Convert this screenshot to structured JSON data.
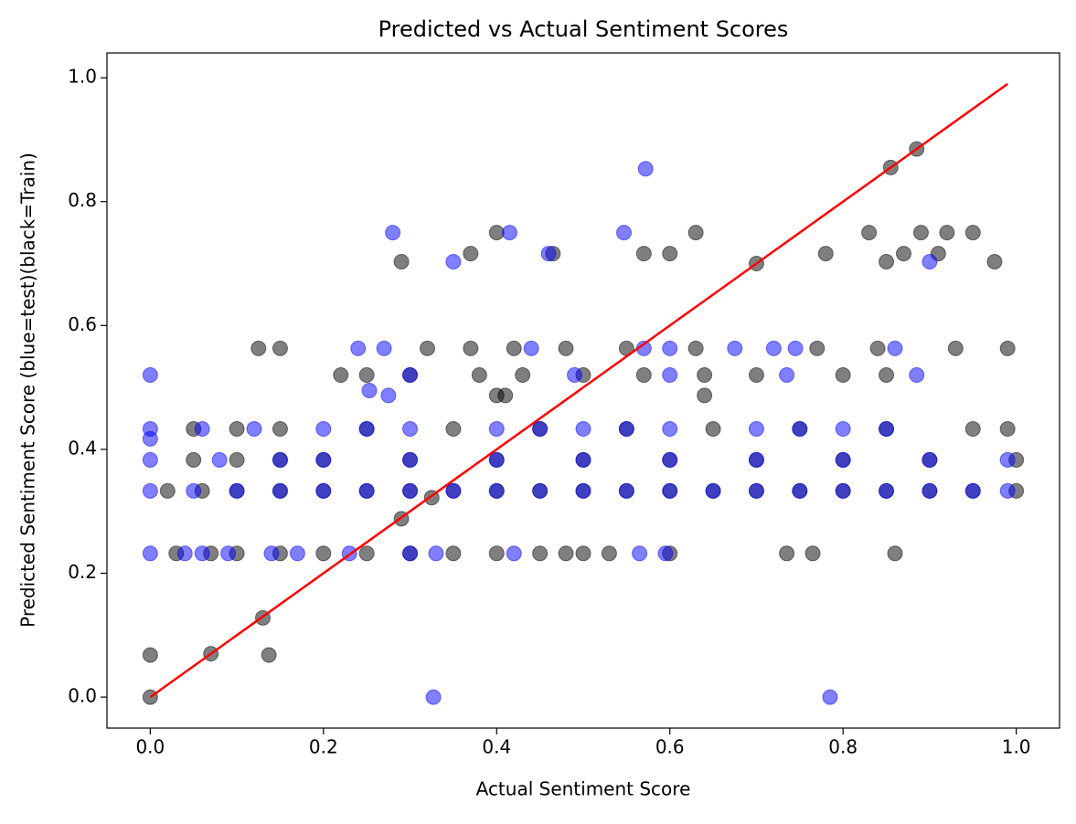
{
  "chart_data": {
    "type": "scatter",
    "title": "Predicted vs Actual Sentiment Scores",
    "x_label": "Actual Sentiment Score",
    "y_label": "Predicted Sentiment Score (blue=test)(black=Train)",
    "xlim": [
      -0.05,
      1.05
    ],
    "ylim": [
      -0.05,
      1.04
    ],
    "xticks": [
      {
        "value": 0,
        "label": "0.0"
      },
      {
        "value": 0.2,
        "label": "0.2"
      },
      {
        "value": 0.4,
        "label": "0.4"
      },
      {
        "value": 0.6,
        "label": "0.6"
      },
      {
        "value": 0.8,
        "label": "0.8"
      },
      {
        "value": 1,
        "label": "1.0"
      }
    ],
    "yticks": [
      {
        "value": 0,
        "label": "0.0"
      },
      {
        "value": 0.2,
        "label": "0.2"
      },
      {
        "value": 0.4,
        "label": "0.4"
      },
      {
        "value": 0.6,
        "label": "0.6"
      },
      {
        "value": 0.8,
        "label": "0.8"
      },
      {
        "value": 1,
        "label": "1.0"
      }
    ],
    "series": [
      {
        "color": "#000000",
        "opacity": 0.5,
        "mode": "markers",
        "x": [
          0,
          0,
          0.07,
          0.13,
          0.137,
          0.29,
          0.325,
          0.7,
          0.855,
          0.885,
          0.03,
          0.07,
          0.1,
          0.15,
          0.2,
          0.25,
          0.3,
          0.35,
          0.4,
          0.45,
          0.48,
          0.5,
          0.53,
          0.6,
          0.735,
          0.765,
          0.86,
          0.02,
          0.06,
          0.1,
          0.15,
          0.2,
          0.25,
          0.3,
          0.35,
          0.4,
          0.45,
          0.5,
          0.55,
          0.6,
          0.65,
          0.7,
          0.75,
          0.8,
          0.85,
          0.9,
          0.95,
          1.0,
          0.05,
          0.1,
          0.15,
          0.2,
          0.3,
          0.4,
          0.5,
          0.6,
          0.7,
          0.8,
          0.9,
          1.0,
          0.05,
          0.1,
          0.15,
          0.25,
          0.35,
          0.45,
          0.55,
          0.65,
          0.75,
          0.85,
          0.95,
          0.99,
          0.4,
          0.41,
          0.64,
          0.22,
          0.25,
          0.3,
          0.38,
          0.43,
          0.5,
          0.57,
          0.64,
          0.7,
          0.8,
          0.85,
          0.125,
          0.15,
          0.32,
          0.37,
          0.42,
          0.48,
          0.55,
          0.63,
          0.77,
          0.84,
          0.93,
          0.99,
          0.29,
          0.85,
          0.975,
          0.37,
          0.465,
          0.57,
          0.6,
          0.78,
          0.87,
          0.91,
          0.4,
          0.63,
          0.83,
          0.89,
          0.92,
          0.95
        ],
        "values": [
          0,
          0.068,
          0.07,
          0.128,
          0.068,
          0.288,
          0.322,
          0.7,
          0.855,
          0.885,
          0.232,
          0.232,
          0.232,
          0.232,
          0.232,
          0.232,
          0.232,
          0.232,
          0.232,
          0.232,
          0.232,
          0.232,
          0.232,
          0.232,
          0.232,
          0.232,
          0.232,
          0.333,
          0.333,
          0.333,
          0.333,
          0.333,
          0.333,
          0.333,
          0.333,
          0.333,
          0.333,
          0.333,
          0.333,
          0.333,
          0.333,
          0.333,
          0.333,
          0.333,
          0.333,
          0.333,
          0.333,
          0.333,
          0.383,
          0.383,
          0.383,
          0.383,
          0.383,
          0.383,
          0.383,
          0.383,
          0.383,
          0.383,
          0.383,
          0.383,
          0.433,
          0.433,
          0.433,
          0.433,
          0.433,
          0.433,
          0.433,
          0.433,
          0.433,
          0.433,
          0.433,
          0.433,
          0.487,
          0.487,
          0.487,
          0.52,
          0.52,
          0.52,
          0.52,
          0.52,
          0.52,
          0.52,
          0.52,
          0.52,
          0.52,
          0.52,
          0.563,
          0.563,
          0.563,
          0.563,
          0.563,
          0.563,
          0.563,
          0.563,
          0.563,
          0.563,
          0.563,
          0.563,
          0.703,
          0.703,
          0.703,
          0.716,
          0.716,
          0.716,
          0.716,
          0.716,
          0.716,
          0.716,
          0.75,
          0.75,
          0.75,
          0.75,
          0.75,
          0.75
        ]
      },
      {
        "color": "#0000ff",
        "opacity": 0.5,
        "mode": "markers",
        "x": [
          0,
          0,
          0.327,
          0.785,
          0.572,
          0.28,
          0.415,
          0.547,
          0.35,
          0.46,
          0.9,
          0.253,
          0.275,
          0,
          0.04,
          0.06,
          0.09,
          0.14,
          0.17,
          0.23,
          0.3,
          0.33,
          0.42,
          0.565,
          0.595,
          0,
          0.05,
          0.1,
          0.15,
          0.2,
          0.25,
          0.3,
          0.35,
          0.4,
          0.45,
          0.5,
          0.55,
          0.6,
          0.65,
          0.7,
          0.75,
          0.8,
          0.85,
          0.9,
          0.95,
          0.99,
          0,
          0.08,
          0.15,
          0.2,
          0.3,
          0.4,
          0.5,
          0.6,
          0.7,
          0.8,
          0.9,
          0.99,
          0,
          0.06,
          0.12,
          0.2,
          0.25,
          0.3,
          0.4,
          0.45,
          0.5,
          0.55,
          0.6,
          0.7,
          0.75,
          0.8,
          0.85,
          0.3,
          0.49,
          0.6,
          0.735,
          0.885,
          0.24,
          0.27,
          0.44,
          0.57,
          0.6,
          0.675,
          0.72,
          0.745,
          0.86
        ],
        "values": [
          0.52,
          0.417,
          0,
          0,
          0.853,
          0.75,
          0.75,
          0.75,
          0.703,
          0.716,
          0.703,
          0.495,
          0.487,
          0.232,
          0.232,
          0.232,
          0.232,
          0.232,
          0.232,
          0.232,
          0.232,
          0.232,
          0.232,
          0.232,
          0.232,
          0.333,
          0.333,
          0.333,
          0.333,
          0.333,
          0.333,
          0.333,
          0.333,
          0.333,
          0.333,
          0.333,
          0.333,
          0.333,
          0.333,
          0.333,
          0.333,
          0.333,
          0.333,
          0.333,
          0.333,
          0.333,
          0.383,
          0.383,
          0.383,
          0.383,
          0.383,
          0.383,
          0.383,
          0.383,
          0.383,
          0.383,
          0.383,
          0.383,
          0.433,
          0.433,
          0.433,
          0.433,
          0.433,
          0.433,
          0.433,
          0.433,
          0.433,
          0.433,
          0.433,
          0.433,
          0.433,
          0.433,
          0.433,
          0.52,
          0.52,
          0.52,
          0.52,
          0.52,
          0.563,
          0.563,
          0.563,
          0.563,
          0.563,
          0.563,
          0.563,
          0.563,
          0.563
        ]
      },
      {
        "color": "#ff0000",
        "mode": "line",
        "x": [
          0,
          0.99
        ],
        "values": [
          0,
          0.99
        ]
      }
    ]
  }
}
